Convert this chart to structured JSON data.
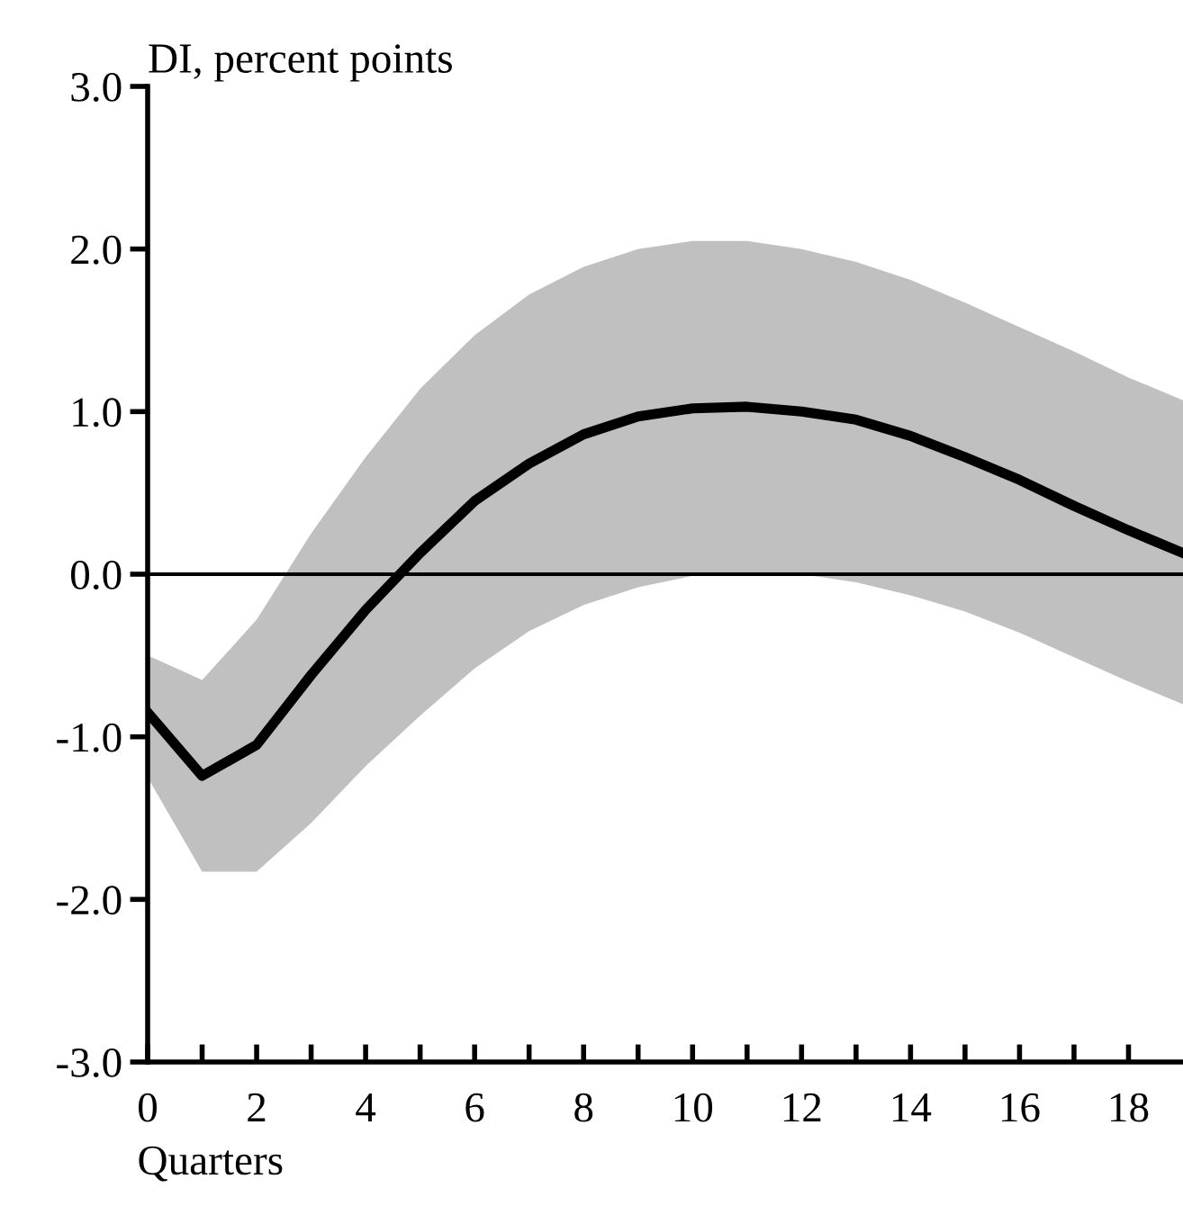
{
  "chart_data": {
    "type": "line",
    "ylabel": "DI, percent points",
    "xlabel": "Quarters",
    "x": [
      0,
      1,
      2,
      3,
      4,
      5,
      6,
      7,
      8,
      9,
      10,
      11,
      12,
      13,
      14,
      15,
      16,
      17,
      18,
      19
    ],
    "series": [
      {
        "color": "#000000",
        "values": [
          -0.85,
          -1.24,
          -1.05,
          -0.62,
          -0.22,
          0.13,
          0.45,
          0.68,
          0.86,
          0.97,
          1.02,
          1.03,
          1.0,
          0.95,
          0.85,
          0.72,
          0.58,
          0.42,
          0.27,
          0.13
        ],
        "upper": [
          -0.5,
          -0.65,
          -0.28,
          0.25,
          0.72,
          1.14,
          1.47,
          1.72,
          1.89,
          2.0,
          2.05,
          2.05,
          2.0,
          1.92,
          1.81,
          1.67,
          1.52,
          1.37,
          1.21,
          1.07
        ],
        "lower": [
          -1.25,
          -1.83,
          -1.83,
          -1.53,
          -1.18,
          -0.87,
          -0.58,
          -0.35,
          -0.19,
          -0.08,
          -0.01,
          0.0,
          0.0,
          -0.05,
          -0.13,
          -0.23,
          -0.36,
          -0.51,
          -0.66,
          -0.8
        ]
      }
    ],
    "xlim": [
      0,
      19
    ],
    "xticks": [
      0,
      {
        "value": 1,
        "label": null
      },
      2,
      {
        "value": 3,
        "label": null
      },
      4,
      {
        "value": 5,
        "label": null
      },
      6,
      {
        "value": 7,
        "label": null
      },
      8,
      {
        "value": 9,
        "label": null
      },
      10,
      {
        "value": 11,
        "label": null
      },
      12,
      {
        "value": 13,
        "label": null
      },
      14,
      {
        "value": 15,
        "label": null
      },
      16,
      {
        "value": 17,
        "label": null
      },
      18
    ],
    "ylim": [
      -3,
      3
    ],
    "yticks": [
      {
        "value": -3,
        "label": "-3.0"
      },
      {
        "value": -2,
        "label": "-2.0"
      },
      {
        "value": -1,
        "label": "-1.0"
      },
      {
        "value": 0,
        "label": "0.0"
      },
      {
        "value": 1,
        "label": "1.0"
      },
      {
        "value": 2,
        "label": "2.0"
      },
      {
        "value": 3,
        "label": "3.0"
      }
    ],
    "ref_lines": [
      {
        "axis": "y",
        "value": 0,
        "color": "#000000"
      }
    ],
    "grid": false,
    "legend": false,
    "marker": "none",
    "line_style": "solid"
  }
}
